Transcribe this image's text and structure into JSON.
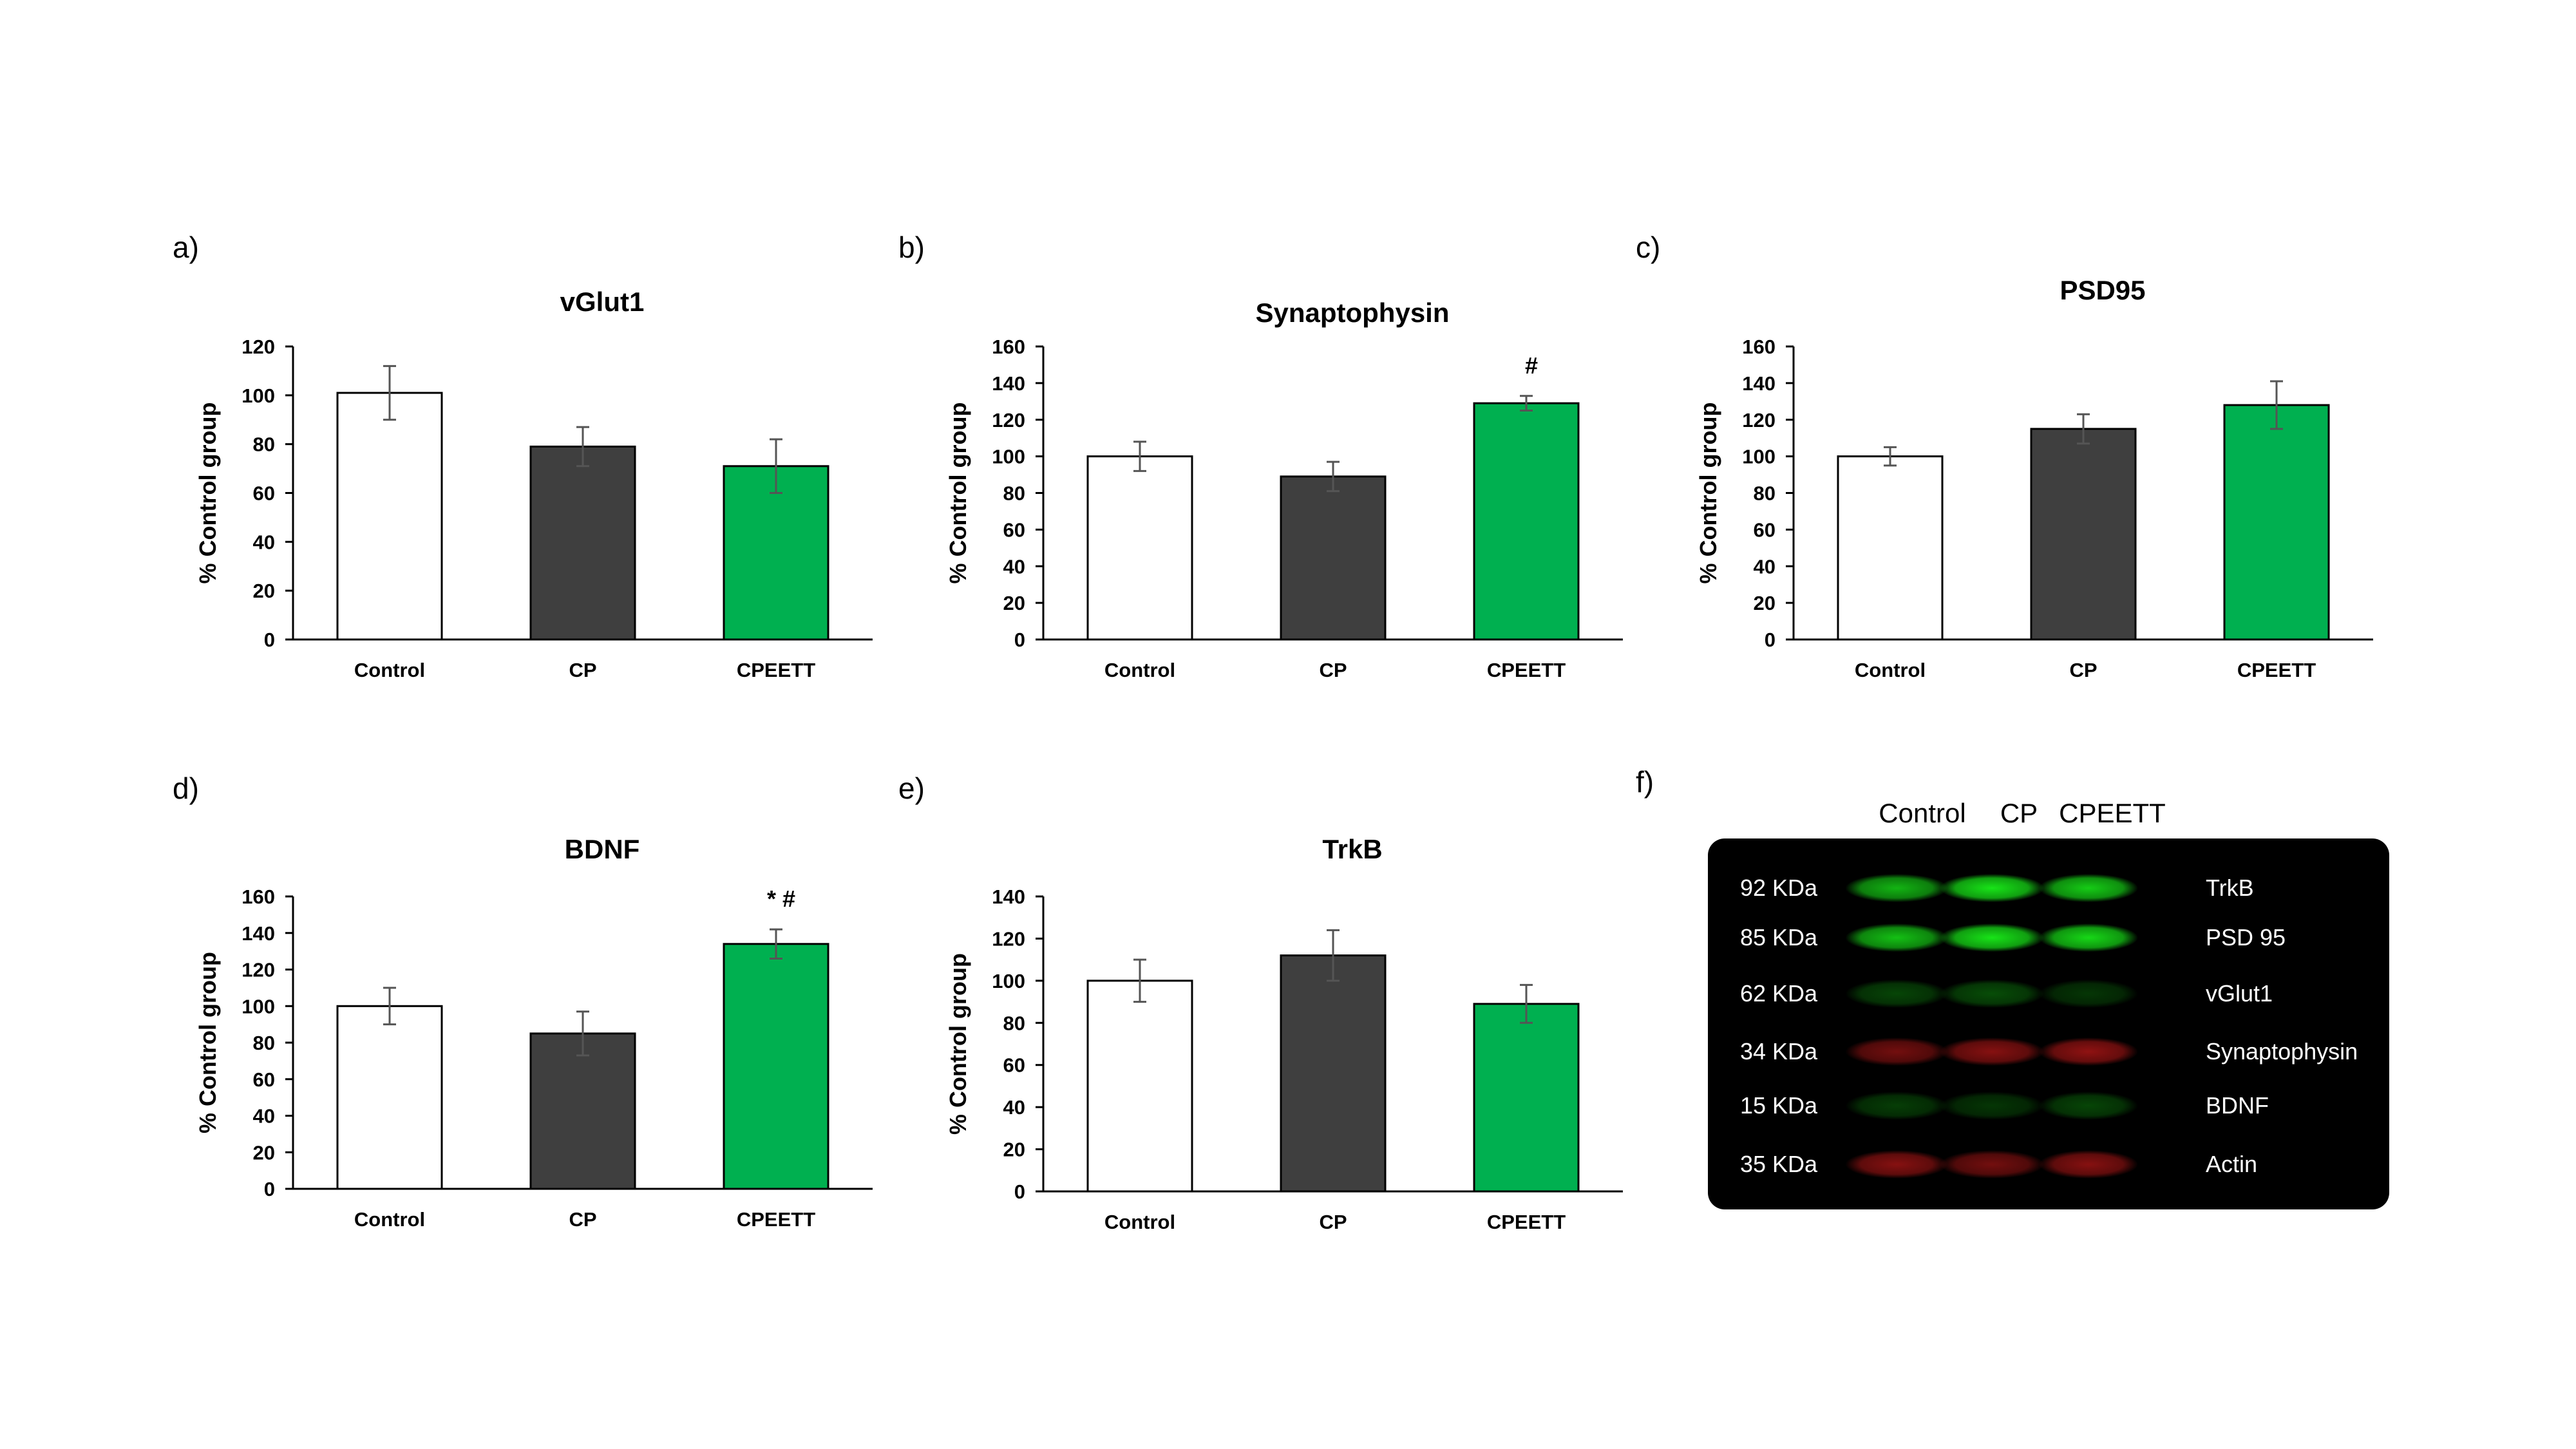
{
  "panels": [
    "a)",
    "b)",
    "c)",
    "d)",
    "e)",
    "f)"
  ],
  "colors": {
    "control": "#ffffff",
    "cp": "#3f3f3f",
    "cpeett": "#00b050",
    "error": "#555555"
  },
  "chart_data": [
    {
      "id": "a",
      "type": "bar",
      "title": "vGlut1",
      "ylabel": "% Control group",
      "categories": [
        "Control",
        "CP",
        "CPEETT"
      ],
      "values": [
        101,
        79,
        71
      ],
      "errors": [
        11,
        8,
        11
      ],
      "ylim": [
        0,
        120
      ],
      "yticks": [
        0,
        20,
        40,
        60,
        80,
        100,
        120
      ],
      "annotations": [
        "",
        "",
        ""
      ]
    },
    {
      "id": "b",
      "type": "bar",
      "title": "Synaptophysin",
      "ylabel": "% Control group",
      "categories": [
        "Control",
        "CP",
        "CPEETT"
      ],
      "values": [
        100,
        89,
        129
      ],
      "errors": [
        8,
        8,
        4
      ],
      "ylim": [
        0,
        160
      ],
      "yticks": [
        0,
        20,
        40,
        60,
        80,
        100,
        120,
        140,
        160
      ],
      "annotations": [
        "",
        "",
        "#"
      ]
    },
    {
      "id": "c",
      "type": "bar",
      "title": "PSD95",
      "ylabel": "% Control group",
      "categories": [
        "Control",
        "CP",
        "CPEETT"
      ],
      "values": [
        100,
        115,
        128
      ],
      "errors": [
        5,
        8,
        13
      ],
      "ylim": [
        0,
        160
      ],
      "yticks": [
        0,
        20,
        40,
        60,
        80,
        100,
        120,
        140,
        160
      ],
      "annotations": [
        "",
        "",
        ""
      ]
    },
    {
      "id": "d",
      "type": "bar",
      "title": "BDNF",
      "ylabel": "% Control group",
      "categories": [
        "Control",
        "CP",
        "CPEETT"
      ],
      "values": [
        100,
        85,
        134
      ],
      "errors": [
        10,
        12,
        8
      ],
      "ylim": [
        0,
        160
      ],
      "yticks": [
        0,
        20,
        40,
        60,
        80,
        100,
        120,
        140,
        160
      ],
      "annotations": [
        "",
        "",
        "* #"
      ]
    },
    {
      "id": "e",
      "type": "bar",
      "title": "TrkB",
      "ylabel": "% Control group",
      "categories": [
        "Control",
        "CP",
        "CPEETT"
      ],
      "values": [
        100,
        112,
        89
      ],
      "errors": [
        10,
        12,
        9
      ],
      "ylim": [
        0,
        140
      ],
      "yticks": [
        0,
        20,
        40,
        60,
        80,
        100,
        120,
        140
      ],
      "annotations": [
        "",
        "",
        ""
      ]
    }
  ],
  "blot": {
    "lanes": [
      "Control",
      "CP",
      "CPEETT"
    ],
    "rows": [
      {
        "kda": "92 KDa",
        "protein": "TrkB",
        "color": "#19f019",
        "intensity": [
          0.75,
          0.95,
          0.85
        ]
      },
      {
        "kda": "85 KDa",
        "protein": "PSD 95",
        "color": "#19f019",
        "intensity": [
          0.8,
          0.95,
          0.9
        ]
      },
      {
        "kda": "62 KDa",
        "protein": "vGlut1",
        "color": "#0f9a0f",
        "intensity": [
          0.45,
          0.5,
          0.35
        ]
      },
      {
        "kda": "34 KDa",
        "protein": "Synaptophysin",
        "color": "#c01818",
        "intensity": [
          0.6,
          0.7,
          0.75
        ]
      },
      {
        "kda": "15 KDa",
        "protein": "BDNF",
        "color": "#0f9a0f",
        "intensity": [
          0.4,
          0.35,
          0.45
        ]
      },
      {
        "kda": "35 KDa",
        "protein": "Actin",
        "color": "#c01818",
        "intensity": [
          0.7,
          0.6,
          0.7
        ]
      }
    ]
  }
}
